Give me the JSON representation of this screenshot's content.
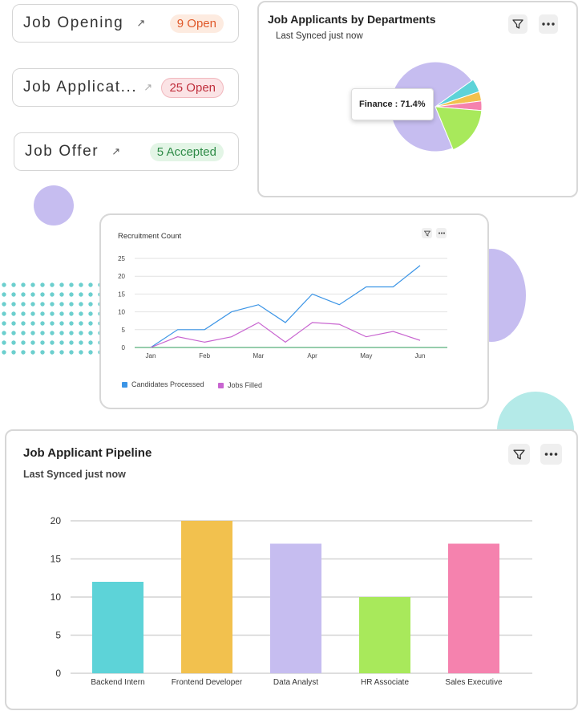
{
  "stats": [
    {
      "title": "Job Opening",
      "badge": "9 Open",
      "badge_bg": "#fdebe0",
      "badge_fg": "#e0592a"
    },
    {
      "title": "Job Applicat...",
      "badge": "25 Open",
      "badge_bg": "#fbe3e5",
      "badge_fg": "#c0303d"
    },
    {
      "title": "Job Offer",
      "badge": "5 Accepted",
      "badge_bg": "#e3f5e6",
      "badge_fg": "#2e8b47"
    }
  ],
  "departments_card": {
    "title": "Job Applicants by Departments",
    "subtitle": "Last Synced just now",
    "tooltip": "Finance : 71.4%",
    "filter_icon": "filter-icon",
    "more_icon": "more-icon"
  },
  "recruitment_card": {
    "title": "Recruitment Count",
    "legend": [
      "Candidates Processed",
      "Jobs Filled"
    ]
  },
  "pipeline_card": {
    "title": "Job Applicant Pipeline",
    "subtitle": "Last Synced just now"
  },
  "colors": {
    "purple": "#c6bdf0",
    "teal": "#5dd3d8",
    "yellow": "#f2c14e",
    "pink": "#f582ae",
    "green": "#a8e95b",
    "blue": "#3c95e6",
    "magenta": "#c865d0"
  },
  "chart_data": [
    {
      "type": "pie",
      "title": "Job Applicants by Departments",
      "slices": [
        {
          "label": "Finance",
          "value": 71.4,
          "color": "#c6bdf0"
        },
        {
          "label": "",
          "value": 4.6,
          "color": "#5dd3d8"
        },
        {
          "label": "",
          "value": 3.3,
          "color": "#f2c14e"
        },
        {
          "label": "",
          "value": 3.3,
          "color": "#f582ae"
        },
        {
          "label": "",
          "value": 17.4,
          "color": "#a8e95b"
        }
      ]
    },
    {
      "type": "line",
      "title": "Recruitment Count",
      "x": [
        "Jan",
        "",
        "Feb",
        "",
        "Mar",
        "",
        "Apr",
        "",
        "May",
        "",
        "Jun"
      ],
      "xticks": [
        "Jan",
        "Feb",
        "Mar",
        "Apr",
        "May",
        "Jun"
      ],
      "series": [
        {
          "name": "Candidates Processed",
          "color": "#3c95e6",
          "values": [
            0,
            5,
            5,
            10,
            12,
            7,
            15,
            12,
            17,
            17,
            23
          ]
        },
        {
          "name": "Jobs Filled",
          "color": "#c865d0",
          "values": [
            0,
            3,
            1.5,
            3,
            7,
            1.5,
            7,
            6.5,
            3,
            4.5,
            2
          ]
        }
      ],
      "yticks": [
        0,
        5,
        10,
        15,
        20,
        25
      ],
      "ylim": [
        0,
        25
      ],
      "legend": "bottom-left",
      "grid": true
    },
    {
      "type": "bar",
      "title": "Job Applicant Pipeline",
      "categories": [
        "Backend Intern",
        "Frontend Developer",
        "Data Analyst",
        "HR Associate",
        "Sales Executive"
      ],
      "values": [
        12,
        20,
        17,
        10,
        17
      ],
      "colors": [
        "#5dd3d8",
        "#f2c14e",
        "#c6bdf0",
        "#a8e95b",
        "#f582ae"
      ],
      "yticks": [
        0,
        5,
        10,
        15,
        20
      ],
      "ylim": [
        0,
        20
      ],
      "grid": true
    }
  ]
}
